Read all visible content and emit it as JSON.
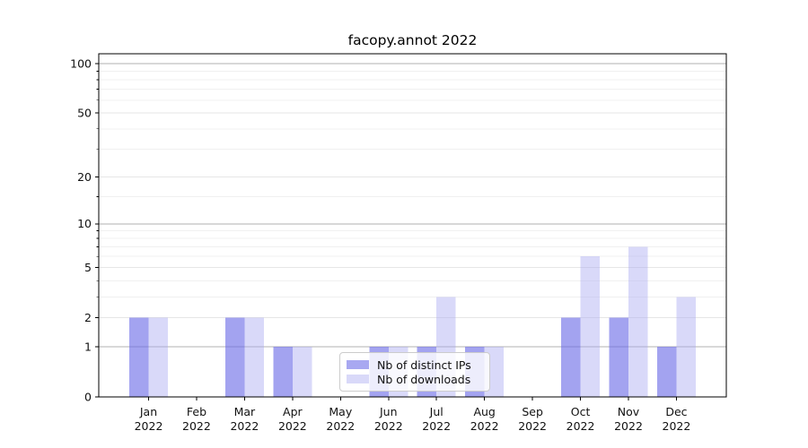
{
  "figure_title": "facopy.annot 2022",
  "chart_data": {
    "type": "bar",
    "title": "facopy.annot 2022",
    "categories": [
      "Jan 2022",
      "Feb 2022",
      "Mar 2022",
      "Apr 2022",
      "May 2022",
      "Jun 2022",
      "Jul 2022",
      "Aug 2022",
      "Sep 2022",
      "Oct 2022",
      "Nov 2022",
      "Dec 2022"
    ],
    "series": [
      {
        "name": "Nb of distinct IPs",
        "color": "#a8a8f1",
        "rgba": "rgba(110,110,232,0.63)",
        "values": [
          2,
          0,
          2,
          1,
          0,
          1,
          1,
          1,
          0,
          2,
          2,
          1
        ]
      },
      {
        "name": "Nb of downloads",
        "color": "#d9d9f9",
        "rgba": "rgba(168,168,241,0.44)",
        "values": [
          2,
          0,
          2,
          1,
          0,
          1,
          3,
          1,
          0,
          6,
          7,
          3
        ]
      }
    ],
    "xlabel": "",
    "ylabel": "",
    "yscale": "log10(1+y)",
    "ylim": [
      0,
      115
    ],
    "yticks": [
      0,
      1,
      2,
      5,
      10,
      20,
      50,
      100
    ],
    "minor_yticks": [
      3,
      4,
      6,
      7,
      8,
      9,
      15,
      30,
      40,
      60,
      70,
      80,
      90
    ],
    "emphasized_gridlines": [
      1,
      10,
      100
    ],
    "grid": "both",
    "legend": {
      "position": "lower center",
      "labels": [
        "Nb of distinct IPs",
        "Nb of downloads"
      ]
    }
  },
  "colors": {
    "grid_major_emphasized": "#b0b0b0",
    "grid_major_light": "#e6e6e6",
    "grid_minor": "#f0f0f0",
    "axis_frame": "#000000",
    "tick_label": "#111111",
    "legend_border": "#cccccc"
  }
}
